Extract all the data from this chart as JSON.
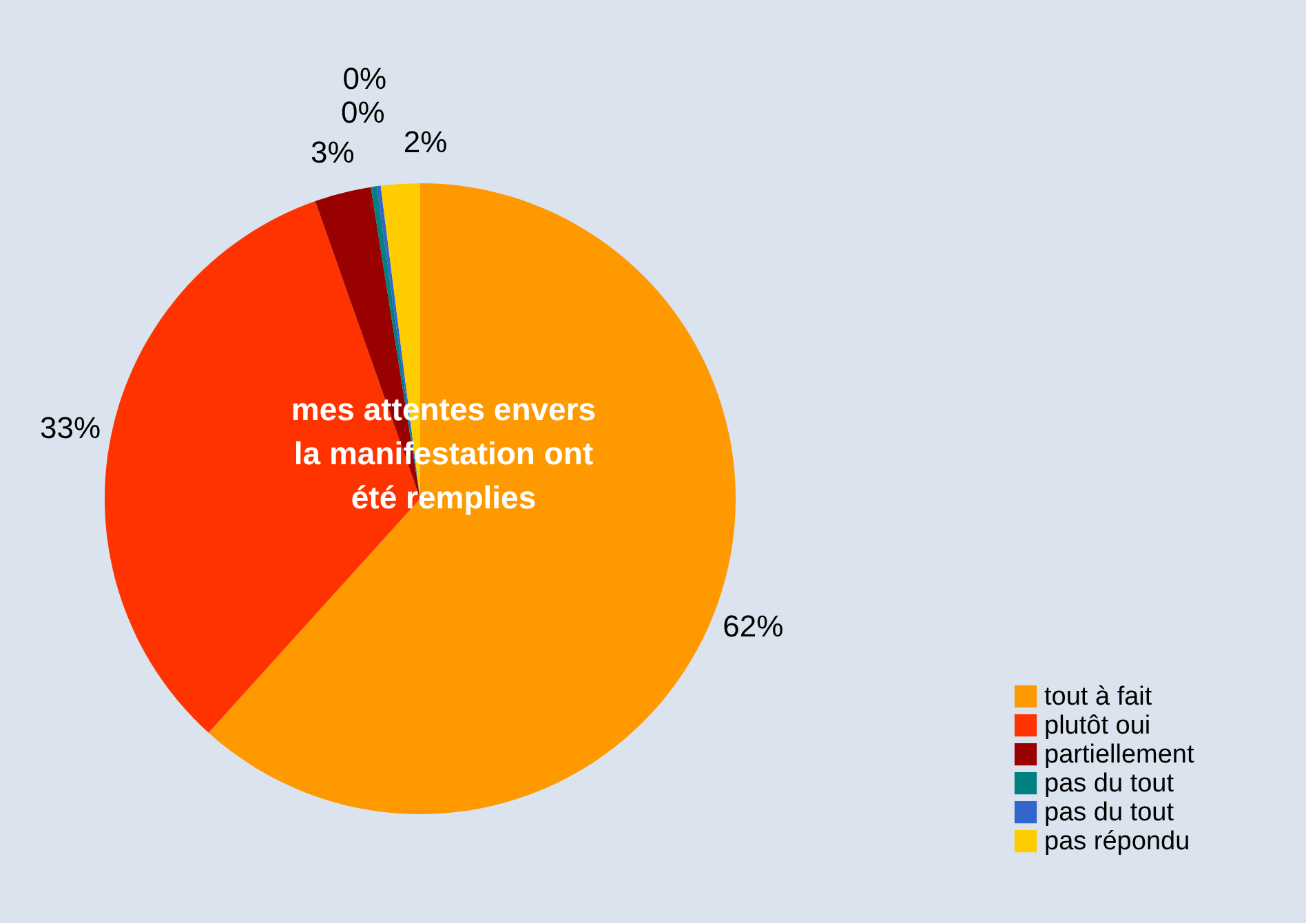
{
  "chart_data": {
    "type": "pie",
    "title": "mes attentes envers la manifestation ont été remplies",
    "categories": [
      "tout à fait",
      "plutôt oui",
      "partiellement",
      "pas du tout",
      "pas du tout",
      "pas répondu"
    ],
    "values": [
      61.7,
      32.9,
      2.9,
      0.3,
      0.2,
      2.0
    ],
    "value_labels": [
      "62%",
      "33%",
      "3%",
      "0%",
      "0%",
      "2%"
    ],
    "colors": [
      "#ff9900",
      "#ff3300",
      "#990000",
      "#008080",
      "#3366cc",
      "#ffcc00"
    ],
    "legend": "bottom right"
  }
}
